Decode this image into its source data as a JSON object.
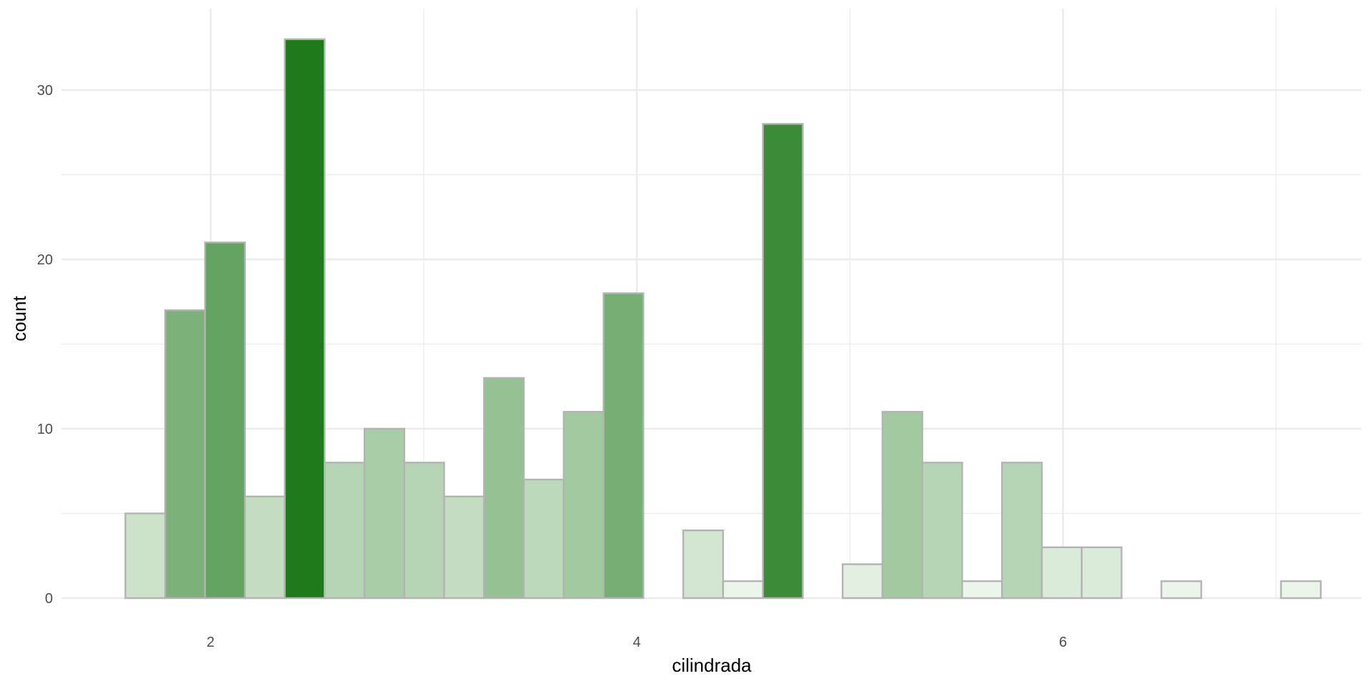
{
  "chart_data": {
    "type": "bar",
    "title": "",
    "xlabel": "cilindrada",
    "ylabel": "count",
    "xlim": [
      1.3,
      7.4
    ],
    "ylim": [
      0,
      33
    ],
    "x_ticks": [
      2,
      4,
      6
    ],
    "y_ticks": [
      0,
      10,
      20,
      30
    ],
    "grid": true,
    "legend": "none",
    "bin_width": 0.187,
    "bin_starts": [
      1.6,
      1.787,
      1.974,
      2.161,
      2.348,
      2.535,
      2.722,
      2.909,
      3.096,
      3.283,
      3.47,
      3.657,
      3.844,
      4.031,
      4.218,
      4.405,
      4.592,
      4.779,
      4.966,
      5.153,
      5.34,
      5.527,
      5.714,
      5.901,
      6.088,
      6.275,
      6.462,
      6.649,
      6.836,
      7.023
    ],
    "values": [
      5,
      17,
      21,
      6,
      33,
      8,
      10,
      8,
      6,
      13,
      7,
      11,
      18,
      0,
      4,
      1,
      28,
      0,
      2,
      11,
      8,
      1,
      8,
      3,
      3,
      0,
      1,
      0,
      0,
      1
    ],
    "fill_low": "#f7fcf5",
    "fill_high": "#1f7a1c",
    "bar_outline": "#b3b3b3",
    "gridline_color": "#ebebeb"
  }
}
